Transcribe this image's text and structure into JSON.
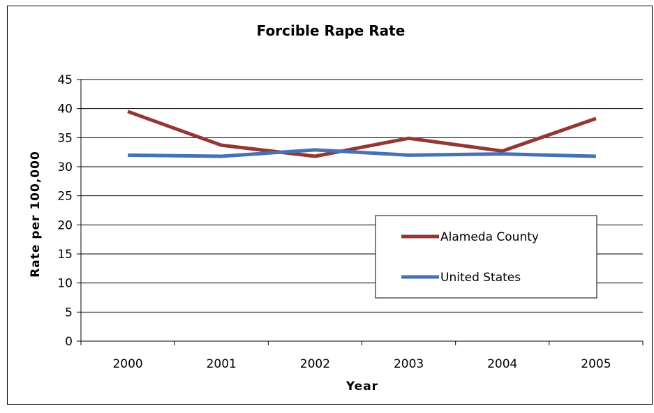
{
  "chart_data": {
    "type": "line",
    "title": "Forcible Rape Rate",
    "xlabel": "Year",
    "ylabel": "Rate per 100,000",
    "categories": [
      "2000",
      "2001",
      "2002",
      "2003",
      "2004",
      "2005"
    ],
    "ylim": [
      0,
      45
    ],
    "yticks": [
      0,
      5,
      10,
      15,
      20,
      25,
      30,
      35,
      40,
      45
    ],
    "grid": true,
    "legend_position": "right",
    "series": [
      {
        "name": "Alameda County",
        "color": "#943634",
        "values": [
          39.5,
          33.7,
          31.8,
          34.9,
          32.7,
          38.3
        ]
      },
      {
        "name": "United States",
        "color": "#4672B5",
        "values": [
          32.0,
          31.8,
          32.9,
          32.0,
          32.2,
          31.8
        ]
      }
    ]
  }
}
